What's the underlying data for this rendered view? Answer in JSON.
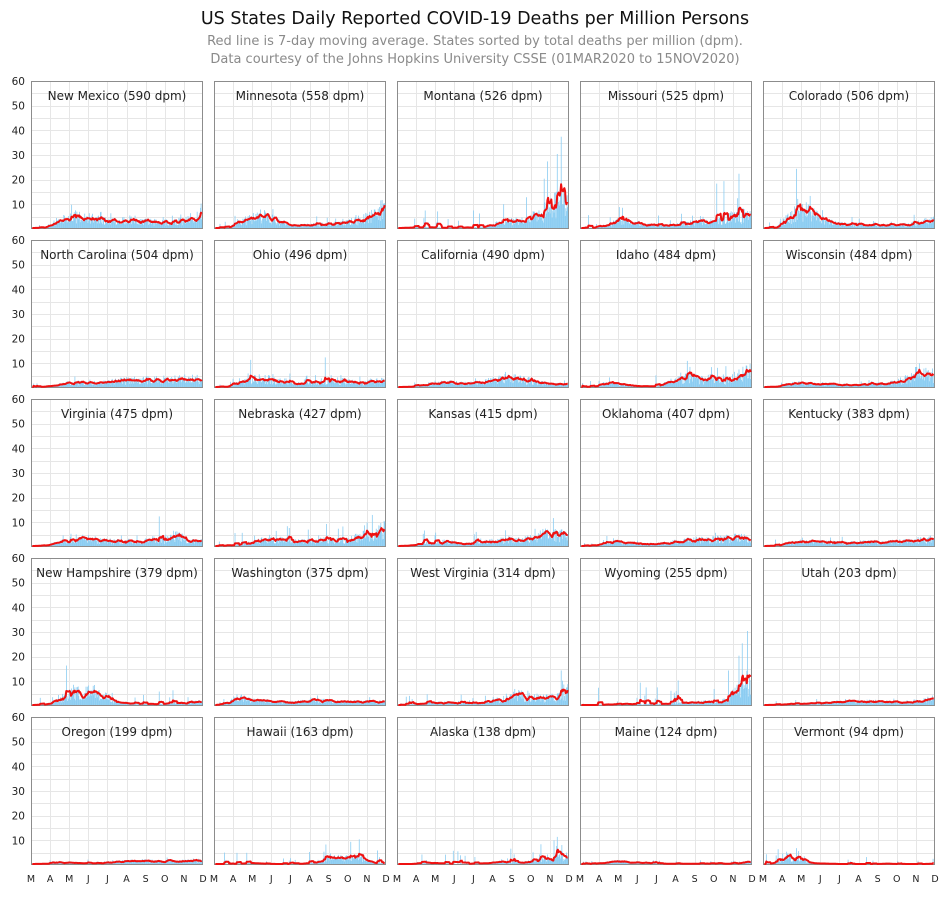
{
  "chart_data": {
    "type": "bar",
    "title": "US States Daily Reported COVID-19 Deaths per Million Persons",
    "subtitle": [
      "Red line is 7-day moving average. States sorted by total deaths per million (dpm).",
      "Data courtesy of the Johns Hopkins University CSSE (01MAR2020 to 15NOV2020)"
    ],
    "ylim": [
      0,
      60
    ],
    "yticks": [
      10,
      20,
      30,
      40,
      50,
      60
    ],
    "xticks": [
      "M",
      "A",
      "M",
      "J",
      "J",
      "A",
      "S",
      "O",
      "N",
      "D"
    ],
    "grid": true,
    "colors": {
      "bars": "#8ccdf2",
      "moving_average": "#ee1111"
    },
    "panels": [
      {
        "label": "New Mexico (590 dpm)",
        "levels": [
          0,
          0.2,
          2.5,
          4.5,
          4.5,
          3.5,
          2.6,
          2.6,
          3.2,
          2.6,
          2.4,
          2.3,
          2.5,
          3.2,
          7.5
        ],
        "noise": 3
      },
      {
        "label": "Minnesota (558 dpm)",
        "levels": [
          0,
          0.2,
          2,
          4,
          4.5,
          3.3,
          1.3,
          1,
          1.2,
          1.4,
          1.8,
          2.3,
          3.2,
          4.6,
          8
        ],
        "noise": 3
      },
      {
        "label": "Montana (526 dpm)",
        "levels": [
          0,
          0.2,
          0.3,
          0.2,
          0.1,
          0.2,
          0.2,
          0.5,
          1.5,
          2.5,
          3,
          3.5,
          6,
          9,
          9
        ],
        "noise": 8,
        "spikes": [
          [
            0.96,
            37
          ],
          [
            0.94,
            30
          ],
          [
            0.88,
            27
          ],
          [
            0.86,
            20
          ],
          [
            0.15,
            4
          ]
        ]
      },
      {
        "label": "Missouri (525 dpm)",
        "levels": [
          0,
          0.2,
          1.2,
          2.5,
          2.4,
          1.3,
          1.1,
          1,
          1.5,
          2,
          2.3,
          2.8,
          4,
          4.5,
          4.2
        ],
        "noise": 6,
        "spikes": [
          [
            0.93,
            22
          ],
          [
            0.8,
            18
          ],
          [
            0.84,
            19
          ]
        ]
      },
      {
        "label": "Colorado (506 dpm)",
        "levels": [
          0,
          0.2,
          4,
          7,
          5.5,
          3,
          1.6,
          1.3,
          1,
          1.2,
          1.1,
          1.1,
          1.5,
          2,
          3.5
        ],
        "noise": 4,
        "spikes": [
          [
            0.19,
            24
          ],
          [
            0.27,
            13
          ]
        ]
      },
      {
        "label": "North Carolina (504 dpm)",
        "levels": [
          0,
          0.2,
          0.8,
          1.5,
          1.7,
          1.6,
          1.7,
          2.2,
          2.5,
          2.8,
          2.8,
          2.9,
          2.9,
          3.2,
          3.2
        ],
        "noise": 2
      },
      {
        "label": "Ohio (496 dpm)",
        "levels": [
          0,
          0.2,
          2,
          3,
          3.3,
          2.5,
          1.6,
          1.2,
          1.6,
          2.1,
          2.5,
          2.1,
          1.5,
          2.2,
          2.6
        ],
        "noise": 4,
        "spikes": [
          [
            0.21,
            11
          ],
          [
            0.65,
            12
          ]
        ]
      },
      {
        "label": "California (490 dpm)",
        "levels": [
          0,
          0.1,
          0.8,
          1.6,
          1.6,
          1.5,
          1.5,
          1.8,
          2.8,
          3.5,
          3,
          2.3,
          1.5,
          1.1,
          1
        ],
        "noise": 1.5
      },
      {
        "label": "Idaho (484 dpm)",
        "levels": [
          0,
          0.2,
          1.2,
          1.5,
          0.6,
          0.3,
          0.3,
          1.2,
          3.5,
          4,
          2.8,
          3.5,
          2.5,
          4.5,
          6.5
        ],
        "noise": 5
      },
      {
        "label": "Wisconsin (484 dpm)",
        "levels": [
          0,
          0.2,
          1.2,
          1.6,
          1.1,
          1.3,
          1,
          0.8,
          0.9,
          1,
          1.3,
          2,
          3.5,
          6.5,
          3.5
        ],
        "noise": 1.5
      },
      {
        "label": "Virginia (475 dpm)",
        "levels": [
          0,
          0.2,
          1.2,
          2.5,
          3.4,
          2.8,
          1.5,
          1.7,
          1.8,
          1.6,
          2.5,
          2.3,
          4,
          1.6,
          2
        ],
        "noise": 3,
        "spikes": [
          [
            0.75,
            12
          ]
        ]
      },
      {
        "label": "Nebraska (427 dpm)",
        "levels": [
          0,
          0.2,
          0.6,
          1.4,
          2.3,
          2.6,
          2.1,
          2,
          1.8,
          2.2,
          2.3,
          2.3,
          3.5,
          4.5,
          6.5
        ],
        "noise": 7
      },
      {
        "label": "Kansas (415 dpm)",
        "levels": [
          0,
          0.2,
          1,
          1.6,
          1.6,
          1,
          1,
          1.5,
          2,
          2.2,
          2.3,
          3,
          4.3,
          4.3,
          4.1
        ],
        "noise": 5
      },
      {
        "label": "Oklahoma (407 dpm)",
        "levels": [
          0,
          0.2,
          1.2,
          1.6,
          1.2,
          0.8,
          0.8,
          1.2,
          1.8,
          2.2,
          2.4,
          2.5,
          2.8,
          3.5,
          2.8
        ],
        "noise": 2.5
      },
      {
        "label": "Kentucky (383 dpm)",
        "levels": [
          0,
          0.2,
          1.2,
          1.6,
          1.6,
          1.4,
          1.3,
          1.2,
          1.4,
          1.6,
          1.7,
          1.6,
          2,
          2.3,
          2.8
        ],
        "noise": 2.5
      },
      {
        "label": "New Hampshire (379 dpm)",
        "levels": [
          0,
          0.2,
          1.5,
          4,
          5,
          5,
          3.5,
          1.2,
          0.7,
          0.5,
          0.4,
          0.6,
          0.8,
          1.1,
          1.2
        ],
        "noise": 6,
        "spikes": [
          [
            0.2,
            16
          ]
        ]
      },
      {
        "label": "Washington (375 dpm)",
        "levels": [
          0,
          0.8,
          3.5,
          2,
          1.6,
          1.3,
          1,
          1.2,
          1.7,
          1.6,
          1.3,
          1.2,
          1.2,
          1.3,
          1.4
        ],
        "noise": 2
      },
      {
        "label": "West Virginia (314 dpm)",
        "levels": [
          0,
          0.1,
          0.6,
          1.1,
          1,
          0.8,
          0.6,
          0.8,
          1.8,
          2.5,
          3.5,
          3,
          2.8,
          2.8,
          5
        ],
        "noise": 4,
        "spikes": [
          [
            0.96,
            14
          ]
        ]
      },
      {
        "label": "Wyoming (255 dpm)",
        "levels": [
          0,
          0,
          0.2,
          0.3,
          0.5,
          0.3,
          0.4,
          0.5,
          0.7,
          1,
          1.1,
          1.3,
          2,
          6,
          8
        ],
        "noise": 9,
        "spikes": [
          [
            0.98,
            30
          ],
          [
            0.95,
            25
          ],
          [
            0.93,
            20
          ],
          [
            0.87,
            14
          ],
          [
            0.1,
            7
          ],
          [
            0.55,
            5
          ]
        ]
      },
      {
        "label": "Utah (203 dpm)",
        "levels": [
          0,
          0.1,
          0.4,
          0.5,
          0.6,
          0.8,
          1,
          1.3,
          1.5,
          1.3,
          1.2,
          1.1,
          1.2,
          1.8,
          2.5
        ],
        "noise": 2
      },
      {
        "label": "Oregon (199 dpm)",
        "levels": [
          0,
          0.1,
          0.5,
          0.5,
          0.4,
          0.3,
          0.4,
          0.8,
          1.1,
          1.3,
          1.1,
          0.9,
          1,
          1.2,
          1.5
        ],
        "noise": 1.5
      },
      {
        "label": "Hawaii (163 dpm)",
        "levels": [
          0,
          0,
          0.2,
          0.4,
          0.1,
          0,
          0,
          0.1,
          0.5,
          1.6,
          2.6,
          2.3,
          2.4,
          0.5,
          0.2
        ],
        "noise": 6,
        "spikes": [
          [
            0.85,
            10
          ],
          [
            0.8,
            9
          ]
        ]
      },
      {
        "label": "Alaska (138 dpm)",
        "levels": [
          0,
          0,
          0.4,
          0.4,
          0.2,
          0,
          0.2,
          0.3,
          0.6,
          0.8,
          0.5,
          1.2,
          2,
          2.4,
          3.5
        ],
        "noise": 6,
        "spikes": [
          [
            0.94,
            11
          ],
          [
            0.84,
            8
          ]
        ]
      },
      {
        "label": "Maine (124 dpm)",
        "levels": [
          0,
          0.1,
          0.6,
          1.1,
          0.6,
          0.5,
          0.3,
          0.1,
          0.1,
          0.1,
          0.1,
          0.2,
          0.1,
          0.3,
          0.8
        ],
        "noise": 1.5
      },
      {
        "label": "Vermont (94 dpm)",
        "levels": [
          0,
          0.6,
          2.8,
          1.6,
          0.3,
          0.2,
          0,
          0,
          0,
          0,
          0.1,
          0,
          0,
          0,
          0.1
        ],
        "noise": 4,
        "spikes": [
          [
            0.08,
            6
          ],
          [
            0.13,
            5
          ]
        ]
      }
    ]
  }
}
